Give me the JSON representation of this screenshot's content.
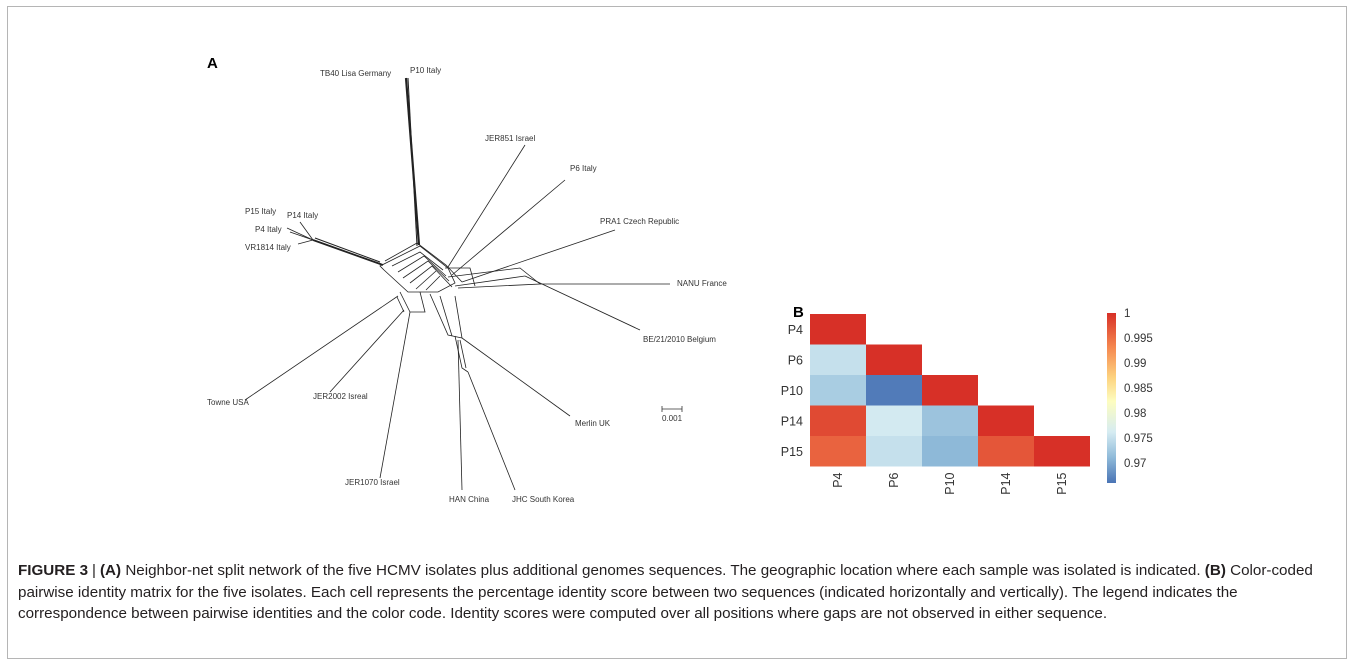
{
  "panelA": {
    "label": "A",
    "taxa": [
      {
        "id": "tb40",
        "text": "TB40 Lisa Germany"
      },
      {
        "id": "p10",
        "text": "P10 Italy"
      },
      {
        "id": "jer851",
        "text": "JER851 Israel"
      },
      {
        "id": "p6",
        "text": "P6 Italy"
      },
      {
        "id": "pra1",
        "text": "PRA1 Czech Republic"
      },
      {
        "id": "nanu",
        "text": "NANU France"
      },
      {
        "id": "be21",
        "text": "BE/21/2010 Belgium"
      },
      {
        "id": "merlin",
        "text": "Merlin UK"
      },
      {
        "id": "jhc",
        "text": "JHC South Korea"
      },
      {
        "id": "han",
        "text": "HAN China"
      },
      {
        "id": "jer1070",
        "text": "JER1070 Israel"
      },
      {
        "id": "jer2002",
        "text": "JER2002 Isreal"
      },
      {
        "id": "towne",
        "text": "Towne USA"
      },
      {
        "id": "vr1814",
        "text": "VR1814 Italy"
      },
      {
        "id": "p4",
        "text": "P4 Italy"
      },
      {
        "id": "p14",
        "text": "P14 Italy"
      },
      {
        "id": "p15",
        "text": "P15 Italy"
      }
    ],
    "scale_label": "0.001"
  },
  "panelB": {
    "label": "B",
    "chart_data": {
      "type": "heatmap",
      "rows": [
        "P4",
        "P6",
        "P10",
        "P14",
        "P15"
      ],
      "cols": [
        "P4",
        "P6",
        "P10",
        "P14",
        "P15"
      ],
      "values": [
        [
          1,
          null,
          null,
          null,
          null
        ],
        [
          0.975,
          1,
          null,
          null,
          null
        ],
        [
          0.973,
          0.9665,
          1,
          null,
          null
        ],
        [
          0.998,
          0.976,
          0.972,
          1,
          null
        ],
        [
          0.996,
          0.975,
          0.971,
          0.997,
          1
        ]
      ],
      "colorbar": {
        "min": 0.966,
        "max": 1,
        "ticks": [
          "1",
          "0.995",
          "0.99",
          "0.985",
          "0.98",
          "0.975",
          "0.97"
        ],
        "tick_values": [
          1,
          0.995,
          0.99,
          0.985,
          0.98,
          0.975,
          0.97
        ],
        "colors": [
          "#4a74b5",
          "#8fbad9",
          "#d6ecf2",
          "#fdfdc0",
          "#fdd37f",
          "#f5874f",
          "#d73027"
        ]
      }
    }
  },
  "caption": {
    "figure_label": "FIGURE 3",
    "separator": "|",
    "part_a": "(A)",
    "text_a": " Neighbor-net split network of the five HCMV isolates plus additional genomes sequences. The geographic location where each sample was isolated is indicated. ",
    "part_b": "(B)",
    "text_b": " Color-coded pairwise identity matrix for the five isolates. Each cell represents the percentage identity score between two sequences (indicated horizontally and vertically). The legend indicates the correspondence between pairwise identities and the color code. Identity scores were computed over all positions where gaps are not observed in either sequence."
  }
}
